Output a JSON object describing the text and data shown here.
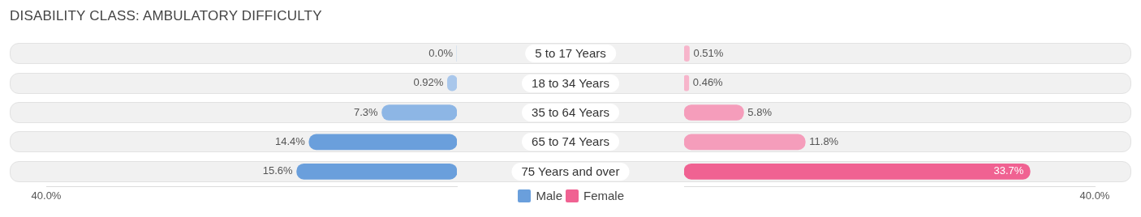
{
  "chart_data": [
    {
      "type": "bar",
      "orientation": "horizontal",
      "title": "DISABILITY CLASS: AMBULATORY DIFFICULTY",
      "categories": [
        "5 to 17 Years",
        "18 to 34 Years",
        "35 to 64 Years",
        "65 to 74 Years",
        "75 Years and over"
      ],
      "series": [
        {
          "name": "Male",
          "color": "#6a9fdc",
          "colors": [
            "#aac8ec",
            "#a9c7eb",
            "#8db6e5",
            "#6a9fdc",
            "#6a9fdc"
          ],
          "values": [
            0.0,
            0.92,
            7.3,
            14.4,
            15.6
          ],
          "value_labels": [
            "0.0%",
            "0.92%",
            "7.3%",
            "14.4%",
            "15.6%"
          ]
        }
      ],
      "xlim": [
        40,
        0
      ],
      "annotations": [
        "40.0%"
      ],
      "legend": "bottom"
    },
    {
      "type": "bar",
      "orientation": "horizontal",
      "categories": [
        null,
        null,
        null,
        null,
        null
      ],
      "series": [
        {
          "name": "Female",
          "color": "#f06292",
          "colors": [
            "#f7b5cb",
            "#f7b5cb",
            "#f59dbb",
            "#f59dbb",
            "#f06292"
          ],
          "values": [
            0.51,
            0.46,
            5.8,
            11.8,
            33.7
          ],
          "value_labels": [
            "0.51%",
            "0.46%",
            "5.8%",
            "11.8%",
            "33.7%"
          ]
        }
      ],
      "xlim": [
        0,
        40
      ],
      "annotations": [
        "40.0%"
      ],
      "legend": "bottom"
    }
  ]
}
